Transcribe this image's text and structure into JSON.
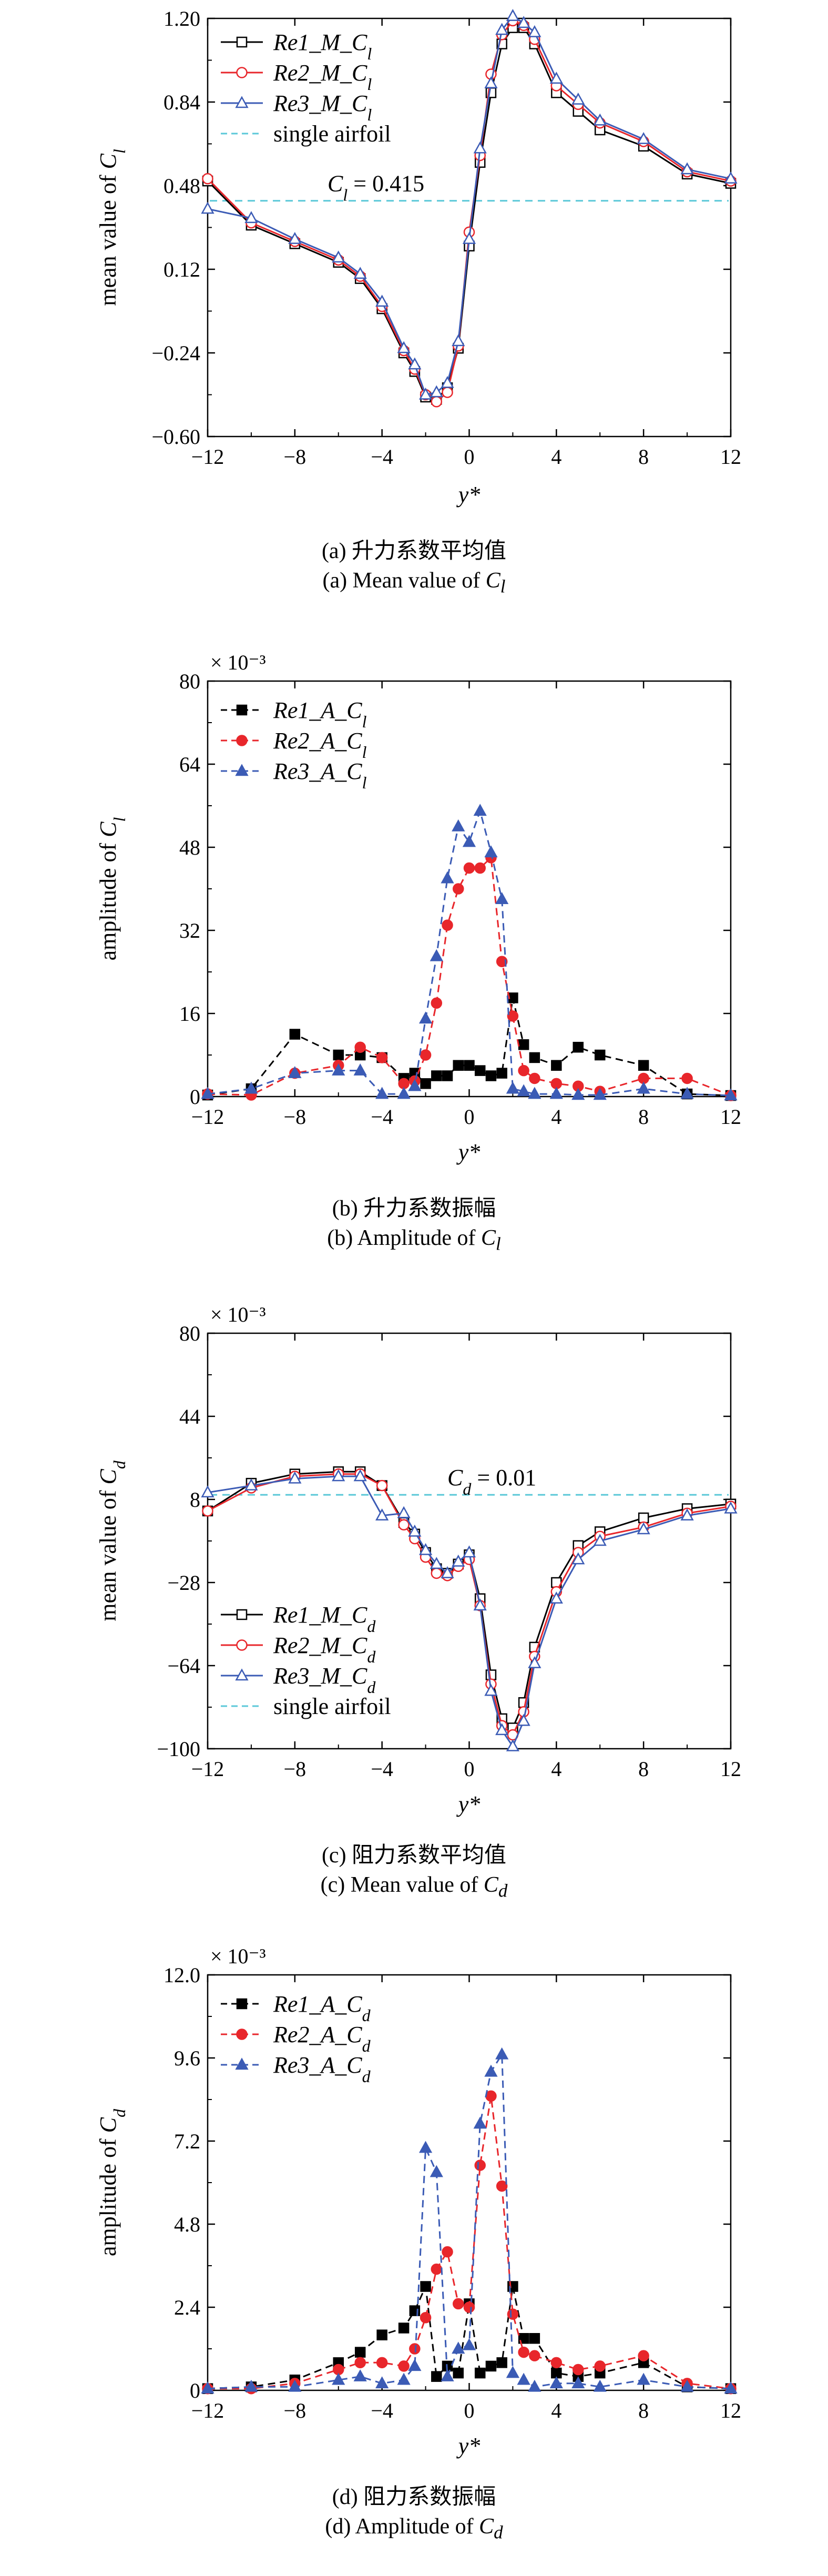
{
  "chart_data": [
    {
      "id": "a",
      "type": "line",
      "ylabel_prefix": "mean value of ",
      "ylabel_var": "C",
      "ylabel_sub": "l",
      "xlabel": "y*",
      "xlim": [
        -12,
        12
      ],
      "ylim": [
        -0.6,
        1.2
      ],
      "xticks": [
        -12,
        -8,
        -4,
        0,
        4,
        8,
        12
      ],
      "yticks": [
        -0.6,
        -0.24,
        0.12,
        0.48,
        0.84,
        1.2
      ],
      "ytick_labels": [
        "−0.60",
        "−0.24",
        "0.12",
        "0.48",
        "0.84",
        "1.20"
      ],
      "multiplier": "",
      "legend_position": "top-left",
      "reference": {
        "value": 0.415,
        "label_var": "C",
        "label_sub": "l",
        "label_text": " = 0.415",
        "color": "#5bc8d8",
        "at_x": -6.5
      },
      "series": [
        {
          "name": "Re1_M_C",
          "sub": "l",
          "color": "#000000",
          "marker": "square",
          "filled": false,
          "dashed": false,
          "x": [
            -12,
            -10,
            -8,
            -6,
            -5,
            -4,
            -3,
            -2.5,
            -2,
            -1.5,
            -1,
            -0.5,
            0,
            0.5,
            1,
            1.5,
            2,
            2.5,
            3,
            4,
            5,
            6,
            8,
            10,
            12
          ],
          "y": [
            0.5,
            0.31,
            0.23,
            0.15,
            0.08,
            -0.05,
            -0.24,
            -0.32,
            -0.43,
            -0.44,
            -0.39,
            -0.22,
            0.22,
            0.58,
            0.88,
            1.09,
            1.16,
            1.16,
            1.09,
            0.88,
            0.8,
            0.72,
            0.65,
            0.53,
            0.49
          ]
        },
        {
          "name": "Re2_M_C",
          "sub": "l",
          "color": "#e8262b",
          "marker": "circle",
          "filled": false,
          "dashed": false,
          "x": [
            -12,
            -10,
            -8,
            -6,
            -5,
            -4,
            -3,
            -2.5,
            -2,
            -1.5,
            -1,
            -0.5,
            0,
            0.5,
            1,
            1.5,
            2,
            2.5,
            3,
            4,
            5,
            6,
            8,
            10,
            12
          ],
          "y": [
            0.51,
            0.32,
            0.24,
            0.16,
            0.09,
            -0.04,
            -0.23,
            -0.31,
            -0.42,
            -0.45,
            -0.41,
            -0.21,
            0.28,
            0.61,
            0.96,
            1.13,
            1.19,
            1.17,
            1.11,
            0.91,
            0.83,
            0.75,
            0.67,
            0.54,
            0.5
          ]
        },
        {
          "name": "Re3_M_C",
          "sub": "l",
          "color": "#3b5bb5",
          "marker": "triangle",
          "filled": false,
          "dashed": false,
          "x": [
            -12,
            -10,
            -8,
            -6,
            -5,
            -4,
            -3,
            -2.5,
            -2,
            -1.5,
            -1,
            -0.5,
            0,
            0.5,
            1,
            1.5,
            2,
            2.5,
            3,
            4,
            5,
            6,
            8,
            10,
            12
          ],
          "y": [
            0.38,
            0.34,
            0.25,
            0.17,
            0.1,
            -0.02,
            -0.22,
            -0.29,
            -0.42,
            -0.41,
            -0.37,
            -0.19,
            0.25,
            0.64,
            0.92,
            1.15,
            1.21,
            1.18,
            1.14,
            0.94,
            0.85,
            0.76,
            0.68,
            0.55,
            0.51
          ]
        }
      ],
      "legend_extra": {
        "label": "single airfoil",
        "color": "#5bc8d8"
      },
      "caption_cn": "(a) 升力系数平均值",
      "caption_en_prefix": "(a) Mean value of ",
      "caption_var": "C",
      "caption_sub": "l"
    },
    {
      "id": "b",
      "type": "line",
      "ylabel_prefix": "amplitude of ",
      "ylabel_var": "C",
      "ylabel_sub": "l",
      "xlabel": "y*",
      "xlim": [
        -12,
        12
      ],
      "ylim": [
        0,
        80
      ],
      "xticks": [
        -12,
        -8,
        -4,
        0,
        4,
        8,
        12
      ],
      "yticks": [
        0,
        16,
        32,
        48,
        64,
        80
      ],
      "ytick_labels": [
        "0",
        "16",
        "32",
        "48",
        "64",
        "80"
      ],
      "multiplier": "× 10⁻³",
      "legend_position": "top-left",
      "series": [
        {
          "name": "Re1_A_C",
          "sub": "l",
          "color": "#000000",
          "marker": "square",
          "filled": true,
          "dashed": true,
          "x": [
            -12,
            -10,
            -8,
            -6,
            -5,
            -4,
            -3,
            -2.5,
            -2,
            -1.5,
            -1,
            -0.5,
            0,
            0.5,
            1,
            1.5,
            2,
            2.5,
            3,
            4,
            5,
            6,
            8,
            10,
            12
          ],
          "y": [
            0.3,
            1.5,
            12,
            8,
            8,
            7.5,
            3.5,
            4.5,
            2.5,
            4,
            4,
            6,
            6,
            5,
            4,
            4.5,
            19,
            10,
            7.5,
            6,
            9.5,
            8,
            6,
            0.5,
            0.2
          ]
        },
        {
          "name": "Re2_A_C",
          "sub": "l",
          "color": "#e8262b",
          "marker": "circle",
          "filled": true,
          "dashed": true,
          "x": [
            -12,
            -10,
            -8,
            -6,
            -5,
            -4,
            -3,
            -2.5,
            -2,
            -1.5,
            -1,
            -0.5,
            0,
            0.5,
            1,
            1.5,
            2,
            2.5,
            3,
            4,
            5,
            6,
            8,
            10,
            12
          ],
          "y": [
            0.5,
            0.3,
            4.5,
            6,
            9.5,
            7.5,
            2.5,
            3,
            8,
            18,
            33,
            40,
            44,
            44,
            46,
            26,
            15.5,
            5,
            3.5,
            2.5,
            2,
            1,
            3.5,
            3.5,
            0.2
          ]
        },
        {
          "name": "Re3_A_C",
          "sub": "l",
          "color": "#3b5bb5",
          "marker": "triangle",
          "filled": true,
          "dashed": true,
          "x": [
            -12,
            -10,
            -8,
            -6,
            -5,
            -4,
            -3,
            -2.5,
            -2,
            -1.5,
            -1,
            -0.5,
            0,
            0.5,
            1,
            1.5,
            2,
            2.5,
            3,
            4,
            5,
            6,
            8,
            10,
            12
          ],
          "y": [
            0.5,
            1.5,
            4.5,
            5,
            5,
            0.5,
            0.5,
            2,
            15,
            27,
            42,
            52,
            49,
            55,
            47,
            38,
            1.5,
            1,
            0.5,
            0.5,
            0.3,
            0.3,
            1.5,
            0.5,
            0.2
          ]
        }
      ],
      "caption_cn": "(b) 升力系数振幅",
      "caption_en_prefix": "(b) Amplitude of ",
      "caption_var": "C",
      "caption_sub": "l"
    },
    {
      "id": "c",
      "type": "line",
      "ylabel_prefix": "mean value of ",
      "ylabel_var": "C",
      "ylabel_sub": "d",
      "xlabel": "y*",
      "xlim": [
        -12,
        12
      ],
      "ylim": [
        -100,
        80
      ],
      "xticks": [
        -12,
        -8,
        -4,
        0,
        4,
        8,
        12
      ],
      "yticks": [
        -100,
        -64,
        -28,
        8,
        44,
        80
      ],
      "ytick_labels": [
        "−100",
        "−64",
        "−28",
        "8",
        "44",
        "80"
      ],
      "multiplier": "× 10⁻³",
      "legend_position": "bottom-left",
      "reference": {
        "value": 10,
        "label_var": "C",
        "label_sub": "d",
        "label_text": " = 0.01",
        "color": "#5bc8d8",
        "at_x": -1
      },
      "series": [
        {
          "name": "Re1_M_C",
          "sub": "d",
          "color": "#000000",
          "marker": "square",
          "filled": false,
          "dashed": false,
          "x": [
            -12,
            -10,
            -8,
            -6,
            -5,
            -4,
            -3,
            -2.5,
            -2,
            -1.5,
            -1,
            -0.5,
            0,
            0.5,
            1,
            1.5,
            2,
            2.5,
            3,
            4,
            5,
            6,
            8,
            10,
            12
          ],
          "y": [
            3,
            15,
            19,
            20,
            20,
            14,
            -2,
            -7,
            -15,
            -22,
            -24,
            -20,
            -16,
            -35,
            -68,
            -87,
            -91,
            -80,
            -56,
            -28,
            -12,
            -6,
            0,
            4,
            6
          ]
        },
        {
          "name": "Re2_M_C",
          "sub": "d",
          "color": "#e8262b",
          "marker": "circle",
          "filled": false,
          "dashed": false,
          "x": [
            -12,
            -10,
            -8,
            -6,
            -5,
            -4,
            -3,
            -2.5,
            -2,
            -1.5,
            -1,
            -0.5,
            0,
            0.5,
            1,
            1.5,
            2,
            2.5,
            3,
            4,
            5,
            6,
            8,
            10,
            12
          ],
          "y": [
            3,
            13,
            18,
            19,
            19,
            14,
            -3,
            -9,
            -17,
            -24,
            -25,
            -21,
            -18,
            -38,
            -72,
            -90,
            -94,
            -84,
            -60,
            -32,
            -15,
            -8,
            -4,
            2,
            5
          ]
        },
        {
          "name": "Re3_M_C",
          "sub": "d",
          "color": "#3b5bb5",
          "marker": "triangle",
          "filled": false,
          "dashed": false,
          "x": [
            -12,
            -10,
            -8,
            -6,
            -5,
            -4,
            -3,
            -2.5,
            -2,
            -1.5,
            -1,
            -0.5,
            0,
            0.5,
            1,
            1.5,
            2,
            2.5,
            3,
            4,
            5,
            6,
            8,
            10,
            12
          ],
          "y": [
            11,
            14,
            17,
            18,
            18,
            1,
            2,
            -6,
            -14,
            -20,
            -24,
            -19,
            -15,
            -38,
            -75,
            -92,
            -99,
            -88,
            -63,
            -35,
            -18,
            -10,
            -5,
            1,
            4
          ]
        }
      ],
      "legend_extra": {
        "label": "single airfoil",
        "color": "#5bc8d8"
      },
      "caption_cn": "(c) 阻力系数平均值",
      "caption_en_prefix": "(c) Mean value of ",
      "caption_var": "C",
      "caption_sub": "d"
    },
    {
      "id": "d",
      "type": "line",
      "ylabel_prefix": "amplitude of ",
      "ylabel_var": "C",
      "ylabel_sub": "d",
      "xlabel": "y*",
      "xlim": [
        -12,
        12
      ],
      "ylim": [
        0,
        12
      ],
      "xticks": [
        -12,
        -8,
        -4,
        0,
        4,
        8,
        12
      ],
      "yticks": [
        0,
        2.4,
        4.8,
        7.2,
        9.6,
        12.0
      ],
      "ytick_labels": [
        "0",
        "2.4",
        "4.8",
        "7.2",
        "9.6",
        "12.0"
      ],
      "multiplier": "× 10⁻³",
      "legend_position": "top-left",
      "series": [
        {
          "name": "Re1_A_C",
          "sub": "d",
          "color": "#000000",
          "marker": "square",
          "filled": true,
          "dashed": true,
          "x": [
            -12,
            -10,
            -8,
            -6,
            -5,
            -4,
            -3,
            -2.5,
            -2,
            -1.5,
            -1,
            -0.5,
            0,
            0.5,
            1,
            1.5,
            2,
            2.5,
            3,
            4,
            5,
            6,
            8,
            10,
            12
          ],
          "y": [
            0.05,
            0.1,
            0.3,
            0.8,
            1.1,
            1.6,
            1.8,
            2.3,
            3.0,
            0.4,
            0.7,
            0.5,
            2.5,
            0.5,
            0.7,
            0.8,
            3.0,
            1.5,
            1.5,
            0.5,
            0.4,
            0.5,
            0.8,
            0.1,
            0.05
          ]
        },
        {
          "name": "Re2_A_C",
          "sub": "d",
          "color": "#e8262b",
          "marker": "circle",
          "filled": true,
          "dashed": true,
          "x": [
            -12,
            -10,
            -8,
            -6,
            -5,
            -4,
            -3,
            -2.5,
            -2,
            -1.5,
            -1,
            -0.5,
            0,
            0.5,
            1,
            1.5,
            2,
            2.5,
            3,
            4,
            5,
            6,
            8,
            10,
            12
          ],
          "y": [
            0.05,
            0.05,
            0.2,
            0.6,
            0.8,
            0.8,
            0.7,
            1.2,
            2.1,
            3.5,
            4.0,
            2.5,
            2.4,
            6.5,
            8.5,
            5.9,
            2.2,
            1.1,
            1.0,
            0.8,
            0.6,
            0.7,
            1.0,
            0.2,
            0.05
          ]
        },
        {
          "name": "Re3_A_C",
          "sub": "d",
          "color": "#3b5bb5",
          "marker": "triangle",
          "filled": true,
          "dashed": true,
          "x": [
            -12,
            -10,
            -8,
            -6,
            -5,
            -4,
            -3,
            -2.5,
            -2,
            -1.5,
            -1,
            -0.5,
            0,
            0.5,
            1,
            1.5,
            2,
            2.5,
            3,
            4,
            5,
            6,
            8,
            10,
            12
          ],
          "y": [
            0.05,
            0.1,
            0.1,
            0.3,
            0.4,
            0.2,
            0.3,
            0.7,
            7.0,
            6.3,
            0.4,
            1.2,
            1.3,
            7.7,
            9.2,
            9.7,
            0.5,
            0.3,
            0.1,
            0.2,
            0.2,
            0.1,
            0.3,
            0.1,
            0.05
          ]
        }
      ],
      "caption_cn": "(d) 阻力系数振幅",
      "caption_en_prefix": "(d) Amplitude of ",
      "caption_var": "C",
      "caption_sub": "d"
    }
  ]
}
